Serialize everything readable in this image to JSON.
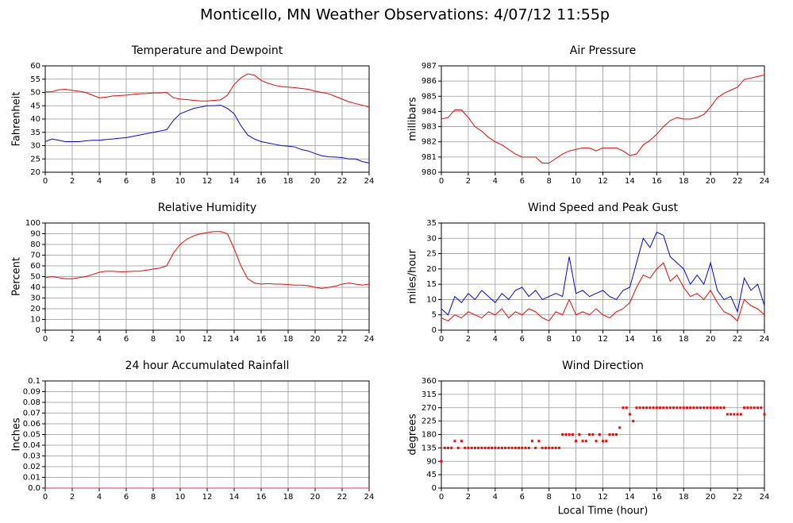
{
  "title": "Monticello, MN Weather Observations: 4/07/12 11:55p",
  "chart_data": [
    {
      "type": "line",
      "title": "Temperature and Dewpoint",
      "ylabel": "Fahrenheit",
      "x": [
        0,
        0.5,
        1,
        1.5,
        2,
        2.5,
        3,
        3.5,
        4,
        4.5,
        5,
        5.5,
        6,
        6.5,
        7,
        7.5,
        8,
        8.5,
        9,
        9.5,
        10,
        10.5,
        11,
        11.5,
        12,
        12.5,
        13,
        13.5,
        14,
        14.5,
        15,
        15.5,
        16,
        16.5,
        17,
        17.5,
        18,
        18.5,
        19,
        19.5,
        20,
        20.5,
        21,
        21.5,
        22,
        22.5,
        23,
        23.5,
        24
      ],
      "series": [
        {
          "color": "#ff0000",
          "values": [
            50.2,
            50.3,
            51,
            51.2,
            50.8,
            50.5,
            50,
            49,
            48,
            48.2,
            48.7,
            48.8,
            49,
            49.3,
            49.5,
            49.6,
            49.8,
            49.8,
            50,
            48,
            47.5,
            47.3,
            47,
            46.8,
            46.8,
            47,
            47.2,
            49,
            53,
            55.5,
            57,
            56.5,
            54.5,
            53.5,
            52.7,
            52.2,
            52,
            51.8,
            51.5,
            51.2,
            50.5,
            50,
            49.5,
            48.5,
            47.5,
            46.5,
            45.8,
            45.2,
            44.5
          ]
        },
        {
          "color": "#0000ff",
          "values": [
            31.5,
            32.5,
            32,
            31.5,
            31.5,
            31.5,
            31.8,
            32,
            32,
            32.3,
            32.5,
            32.8,
            33,
            33.5,
            34,
            34.5,
            35,
            35.5,
            36,
            39.5,
            42,
            43,
            44,
            44.5,
            45,
            45,
            45.2,
            44,
            42,
            37.5,
            34,
            32.5,
            31.5,
            31,
            30.5,
            30,
            29.8,
            29.5,
            28.5,
            28,
            27,
            26.2,
            25.8,
            25.7,
            25.5,
            25,
            25,
            24,
            23.5
          ]
        }
      ],
      "xlim": [
        0,
        24
      ],
      "xticks": [
        0,
        2,
        4,
        6,
        8,
        10,
        12,
        14,
        16,
        18,
        20,
        22,
        24
      ],
      "ylim": [
        20,
        60
      ],
      "yticks": [
        20,
        25,
        30,
        35,
        40,
        45,
        50,
        55,
        60
      ],
      "grid": true
    },
    {
      "type": "line",
      "title": "Air Pressure",
      "ylabel": "millibars",
      "x": [
        0,
        0.5,
        1,
        1.5,
        2,
        2.5,
        3,
        3.5,
        4,
        4.5,
        5,
        5.5,
        6,
        6.5,
        7,
        7.5,
        8,
        8.5,
        9,
        9.5,
        10,
        10.5,
        11,
        11.5,
        12,
        12.5,
        13,
        13.5,
        14,
        14.5,
        15,
        15.5,
        16,
        16.5,
        17,
        17.5,
        18,
        18.5,
        19,
        19.5,
        20,
        20.5,
        21,
        21.5,
        22,
        22.5,
        23,
        23.5,
        24
      ],
      "series": [
        {
          "color": "#ff0000",
          "values": [
            983.5,
            983.6,
            984.1,
            984.1,
            983.6,
            983,
            982.7,
            982.3,
            982,
            981.8,
            981.5,
            981.2,
            981,
            981,
            981,
            980.6,
            980.6,
            980.9,
            981.2,
            981.4,
            981.5,
            981.6,
            981.6,
            981.4,
            981.6,
            981.6,
            981.6,
            981.4,
            981.1,
            981.2,
            981.8,
            982.1,
            982.5,
            983,
            983.4,
            983.6,
            983.5,
            983.5,
            983.6,
            983.8,
            984.3,
            984.9,
            985.2,
            985.4,
            985.6,
            986.1,
            986.2,
            986.3,
            986.4
          ]
        }
      ],
      "xlim": [
        0,
        24
      ],
      "xticks": [
        0,
        2,
        4,
        6,
        8,
        10,
        12,
        14,
        16,
        18,
        20,
        22,
        24
      ],
      "ylim": [
        980,
        987
      ],
      "yticks": [
        980,
        981,
        982,
        983,
        984,
        985,
        986,
        987
      ],
      "grid": true
    },
    {
      "type": "line",
      "title": "Relative Humidity",
      "ylabel": "Percent",
      "x": [
        0,
        0.5,
        1,
        1.5,
        2,
        2.5,
        3,
        3.5,
        4,
        4.5,
        5,
        5.5,
        6,
        6.5,
        7,
        7.5,
        8,
        8.5,
        9,
        9.5,
        10,
        10.5,
        11,
        11.5,
        12,
        12.5,
        13,
        13.5,
        14,
        14.5,
        15,
        15.5,
        16,
        16.5,
        17,
        17.5,
        18,
        18.5,
        19,
        19.5,
        20,
        20.5,
        21,
        21.5,
        22,
        22.5,
        23,
        23.5,
        24
      ],
      "series": [
        {
          "color": "#ff0000",
          "values": [
            49,
            50,
            49,
            48,
            48,
            49,
            50,
            52,
            54,
            55,
            55,
            54.5,
            54.5,
            55,
            55,
            56,
            57,
            58,
            60,
            72,
            80,
            85,
            88,
            90,
            91,
            92,
            92,
            90,
            76,
            60,
            48,
            44,
            43,
            43.5,
            43,
            43,
            42.5,
            42,
            42,
            41.5,
            40,
            39,
            40,
            41,
            43,
            44,
            43,
            42,
            43
          ]
        }
      ],
      "xlim": [
        0,
        24
      ],
      "xticks": [
        0,
        2,
        4,
        6,
        8,
        10,
        12,
        14,
        16,
        18,
        20,
        22,
        24
      ],
      "ylim": [
        0,
        100
      ],
      "yticks": [
        0,
        10,
        20,
        30,
        40,
        50,
        60,
        70,
        80,
        90,
        100
      ],
      "grid": true
    },
    {
      "type": "line",
      "title": "Wind Speed and Peak Gust",
      "ylabel": "miles/hour",
      "x": [
        0,
        0.5,
        1,
        1.5,
        2,
        2.5,
        3,
        3.5,
        4,
        4.5,
        5,
        5.5,
        6,
        6.5,
        7,
        7.5,
        8,
        8.5,
        9,
        9.5,
        10,
        10.5,
        11,
        11.5,
        12,
        12.5,
        13,
        13.5,
        14,
        14.5,
        15,
        15.5,
        16,
        16.5,
        17,
        17.5,
        18,
        18.5,
        19,
        19.5,
        20,
        20.5,
        21,
        21.5,
        22,
        22.5,
        23,
        23.5,
        24
      ],
      "series": [
        {
          "color": "#0000ff",
          "values": [
            7,
            5,
            11,
            9,
            12,
            10,
            13,
            11,
            9,
            12,
            10,
            13,
            14,
            11,
            13,
            10,
            11,
            12,
            11,
            24,
            12,
            13,
            11,
            12,
            13,
            11,
            10,
            13,
            14,
            22,
            30,
            27,
            32,
            31,
            24,
            22,
            20,
            15,
            18,
            15,
            22,
            13,
            10,
            11,
            6,
            17,
            13,
            15,
            8
          ]
        },
        {
          "color": "#ff0000",
          "values": [
            4,
            3,
            5,
            4,
            6,
            5,
            4,
            6,
            5,
            7,
            4,
            6,
            5,
            7,
            6,
            4,
            3,
            6,
            5,
            10,
            5,
            6,
            5,
            7,
            5,
            4,
            6,
            7,
            9,
            14,
            18,
            17,
            20,
            22,
            16,
            18,
            14,
            11,
            12,
            10,
            13,
            9,
            6,
            5,
            3,
            10,
            8,
            7,
            5
          ]
        }
      ],
      "xlim": [
        0,
        24
      ],
      "xticks": [
        0,
        2,
        4,
        6,
        8,
        10,
        12,
        14,
        16,
        18,
        20,
        22,
        24
      ],
      "ylim": [
        0,
        35
      ],
      "yticks": [
        0,
        5,
        10,
        15,
        20,
        25,
        30,
        35
      ],
      "grid": true
    },
    {
      "type": "line",
      "title": "24 hour Accumulated Rainfall",
      "ylabel": "Inches",
      "x": [
        0,
        24
      ],
      "series": [
        {
          "color": "#e0306a",
          "values": [
            0,
            0
          ]
        }
      ],
      "xlim": [
        0,
        24
      ],
      "xticks": [
        0,
        2,
        4,
        6,
        8,
        10,
        12,
        14,
        16,
        18,
        20,
        22,
        24
      ],
      "ylim": [
        0,
        0.1
      ],
      "yticks": [
        {
          "value": 0,
          "label": "0.0"
        },
        0.01,
        0.02,
        0.03,
        0.04,
        0.05,
        0.06,
        0.07,
        0.08,
        0.09,
        0.1
      ],
      "grid": true
    },
    {
      "type": "scatter",
      "title": "Wind Direction",
      "ylabel": "degrees",
      "xlabel": "Local Time (hour)",
      "x": [
        0,
        0.25,
        0.5,
        0.75,
        1,
        1.25,
        1.5,
        1.75,
        2,
        2.25,
        2.5,
        2.75,
        3,
        3.25,
        3.5,
        3.75,
        4,
        4.25,
        4.5,
        4.75,
        5,
        5.25,
        5.5,
        5.75,
        6,
        6.25,
        6.5,
        6.75,
        7,
        7.25,
        7.5,
        7.75,
        8,
        8.25,
        8.5,
        8.75,
        9,
        9.25,
        9.5,
        9.75,
        10,
        10.25,
        10.5,
        10.75,
        11,
        11.25,
        11.5,
        11.75,
        12,
        12.25,
        12.5,
        12.75,
        13,
        13.25,
        13.5,
        13.75,
        14,
        14.25,
        14.5,
        14.75,
        15,
        15.25,
        15.5,
        15.75,
        16,
        16.25,
        16.5,
        16.75,
        17,
        17.25,
        17.5,
        17.75,
        18,
        18.25,
        18.5,
        18.75,
        19,
        19.25,
        19.5,
        19.75,
        20,
        20.25,
        20.5,
        20.75,
        21,
        21.25,
        21.5,
        21.75,
        22,
        22.25,
        22.5,
        22.75,
        23,
        23.25,
        23.5,
        23.75,
        24
      ],
      "series": [
        {
          "color": "#ff0000",
          "values": [
            90,
            135,
            135,
            135,
            158,
            135,
            158,
            135,
            135,
            135,
            135,
            135,
            135,
            135,
            135,
            135,
            135,
            135,
            135,
            135,
            135,
            135,
            135,
            135,
            135,
            135,
            135,
            158,
            135,
            158,
            135,
            135,
            135,
            135,
            135,
            135,
            180,
            180,
            180,
            180,
            158,
            180,
            158,
            158,
            180,
            180,
            158,
            180,
            158,
            158,
            180,
            180,
            180,
            203,
            270,
            270,
            248,
            225,
            270,
            270,
            270,
            270,
            270,
            270,
            270,
            270,
            270,
            270,
            270,
            270,
            270,
            270,
            270,
            270,
            270,
            270,
            270,
            270,
            270,
            270,
            270,
            270,
            270,
            270,
            270,
            248,
            248,
            248,
            248,
            248,
            270,
            270,
            270,
            270,
            270,
            270,
            248
          ]
        }
      ],
      "xlim": [
        0,
        24
      ],
      "xticks": [
        0,
        2,
        4,
        6,
        8,
        10,
        12,
        14,
        16,
        18,
        20,
        22,
        24
      ],
      "ylim": [
        0,
        360
      ],
      "yticks": [
        0,
        45,
        90,
        135,
        180,
        225,
        270,
        315,
        360
      ],
      "grid": true
    }
  ]
}
